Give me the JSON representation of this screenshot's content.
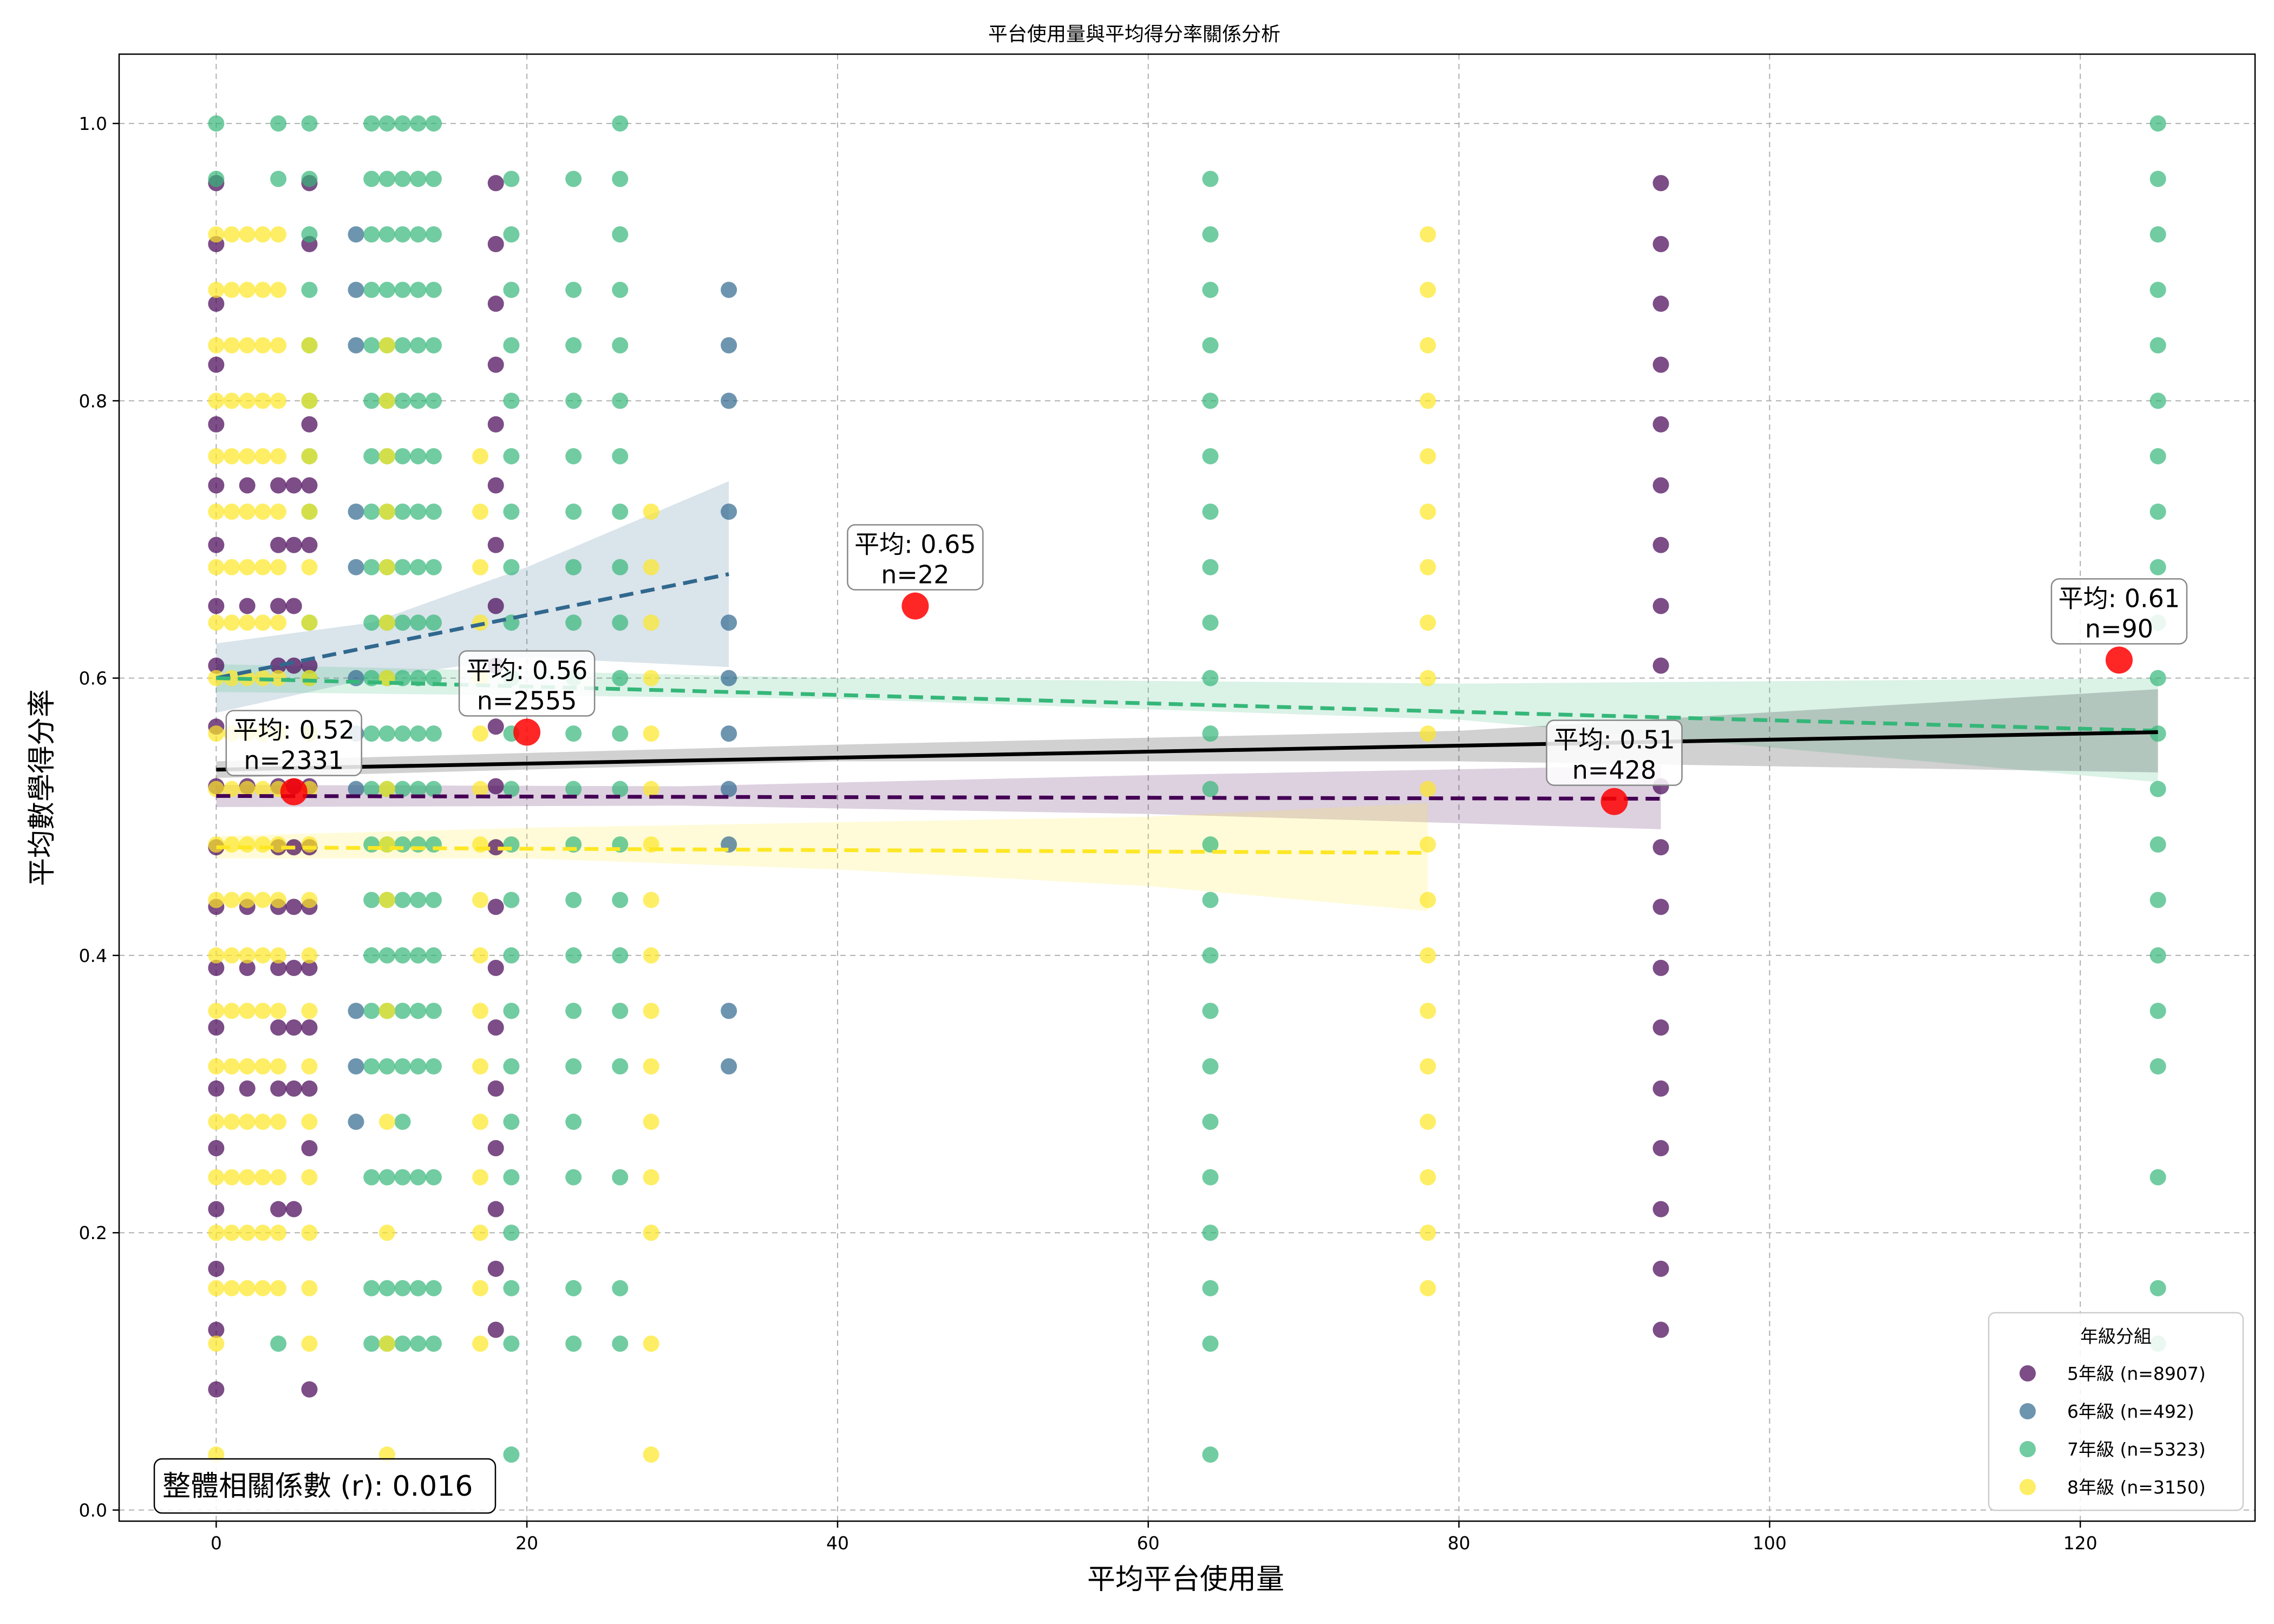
{
  "chart_data": {
    "type": "scatter",
    "title": "平台使用量與平均得分率關係分析",
    "xlabel": "平均平台使用量",
    "ylabel": "平均數學得分率",
    "xlim": [
      -6.25,
      131.25
    ],
    "ylim": [
      -0.008,
      1.05
    ],
    "xticks": [
      0,
      20,
      40,
      60,
      80,
      100,
      120
    ],
    "yticks": [
      0.0,
      0.2,
      0.4,
      0.6,
      0.8,
      1.0
    ],
    "xtick_labels": [
      "0",
      "20",
      "40",
      "60",
      "80",
      "100",
      "120"
    ],
    "ytick_labels": [
      "0.0",
      "0.2",
      "0.4",
      "0.6",
      "0.8",
      "1.0"
    ],
    "grid": true,
    "legend": {
      "title": "年級分組",
      "placement": "bottom-right",
      "entries": [
        "5年級 (n=8907)",
        "6年級 (n=492)",
        "7年級 (n=5323)",
        "8年級 (n=3150)"
      ]
    },
    "correlation_text": "整體相關係數 (r): 0.016",
    "series": [
      {
        "name": "5年級 (n=8907)",
        "color": "#440154",
        "score_levels": [
          0.087,
          0.13,
          0.174,
          0.217,
          0.261,
          0.304,
          0.348,
          0.391,
          0.435,
          0.478,
          0.522,
          0.565,
          0.609,
          0.652,
          0.696,
          0.739,
          0.783,
          0.826,
          0.87,
          0.913,
          0.957
        ],
        "columns": [
          {
            "x": 0,
            "ys": [
              0.087,
              0.13,
              0.174,
              0.217,
              0.261,
              0.304,
              0.348,
              0.391,
              0.435,
              0.478,
              0.522,
              0.565,
              0.609,
              0.652,
              0.696,
              0.739,
              0.783,
              0.826,
              0.87,
              0.913,
              0.957
            ]
          },
          {
            "x": 2,
            "ys": [
              0.304,
              0.391,
              0.435,
              0.522,
              0.652,
              0.739
            ]
          },
          {
            "x": 4,
            "ys": [
              0.217,
              0.304,
              0.348,
              0.391,
              0.435,
              0.478,
              0.522,
              0.609,
              0.652,
              0.696,
              0.739
            ]
          },
          {
            "x": 5,
            "ys": [
              0.217,
              0.304,
              0.348,
              0.391,
              0.435,
              0.478,
              0.522,
              0.609,
              0.652,
              0.696,
              0.739
            ]
          },
          {
            "x": 6,
            "ys": [
              0.087,
              0.261,
              0.304,
              0.348,
              0.391,
              0.435,
              0.478,
              0.522,
              0.609,
              0.696,
              0.739,
              0.783,
              0.913,
              0.957
            ]
          },
          {
            "x": 18,
            "ys": [
              0.13,
              0.174,
              0.217,
              0.261,
              0.304,
              0.348,
              0.391,
              0.435,
              0.478,
              0.522,
              0.565,
              0.609,
              0.652,
              0.696,
              0.739,
              0.783,
              0.826,
              0.87,
              0.913,
              0.957
            ]
          },
          {
            "x": 93,
            "ys": [
              0.13,
              0.174,
              0.217,
              0.261,
              0.304,
              0.348,
              0.391,
              0.435,
              0.478,
              0.522,
              0.609,
              0.652,
              0.696,
              0.739,
              0.783,
              0.826,
              0.87,
              0.913,
              0.957
            ]
          }
        ],
        "trend": {
          "x": [
            0,
            93
          ],
          "y": [
            0.515,
            0.513
          ]
        },
        "band": {
          "x": [
            0,
            30,
            60,
            93
          ],
          "lower": [
            0.507,
            0.508,
            0.502,
            0.491
          ],
          "upper": [
            0.523,
            0.522,
            0.53,
            0.537
          ]
        }
      },
      {
        "name": "6年級 (n=492)",
        "color": "#31688e",
        "columns": [
          {
            "x": 9,
            "ys": [
              0.28,
              0.32,
              0.36,
              0.52,
              0.56,
              0.6,
              0.68,
              0.72,
              0.84,
              0.88,
              0.92
            ]
          },
          {
            "x": 33,
            "ys": [
              0.32,
              0.36,
              0.48,
              0.52,
              0.56,
              0.6,
              0.64,
              0.72,
              0.8,
              0.84,
              0.88
            ]
          }
        ],
        "trend": {
          "x": [
            0,
            33
          ],
          "y": [
            0.6,
            0.675
          ]
        },
        "band": {
          "x": [
            0,
            10,
            20,
            33
          ],
          "lower": [
            0.575,
            0.6,
            0.615,
            0.608
          ],
          "upper": [
            0.625,
            0.64,
            0.68,
            0.742
          ]
        }
      },
      {
        "name": "7年級 (n=5323)",
        "color": "#35b779",
        "columns": [
          {
            "x": 0,
            "ys": [
              0.96,
              1.0
            ]
          },
          {
            "x": 4,
            "ys": [
              0.12,
              0.96,
              1.0
            ]
          },
          {
            "x": 6,
            "ys": [
              0.56,
              0.6,
              0.64,
              0.72,
              0.76,
              0.8,
              0.84,
              0.88,
              0.92,
              0.96,
              1.0
            ]
          },
          {
            "x": 10,
            "ys": [
              0.12,
              0.16,
              0.24,
              0.32,
              0.36,
              0.4,
              0.44,
              0.48,
              0.52,
              0.56,
              0.6,
              0.64,
              0.68,
              0.72,
              0.76,
              0.8,
              0.84,
              0.88,
              0.92,
              0.96,
              1.0
            ]
          },
          {
            "x": 11,
            "ys": [
              0.12,
              0.16,
              0.24,
              0.32,
              0.36,
              0.4,
              0.44,
              0.48,
              0.52,
              0.56,
              0.6,
              0.64,
              0.68,
              0.72,
              0.76,
              0.8,
              0.84,
              0.88,
              0.92,
              0.96,
              1.0
            ]
          },
          {
            "x": 12,
            "ys": [
              0.12,
              0.16,
              0.24,
              0.28,
              0.32,
              0.36,
              0.4,
              0.44,
              0.48,
              0.52,
              0.56,
              0.6,
              0.64,
              0.68,
              0.72,
              0.76,
              0.8,
              0.84,
              0.88,
              0.92,
              0.96,
              1.0
            ]
          },
          {
            "x": 13,
            "ys": [
              0.12,
              0.16,
              0.24,
              0.32,
              0.36,
              0.4,
              0.44,
              0.48,
              0.52,
              0.56,
              0.6,
              0.64,
              0.68,
              0.72,
              0.76,
              0.8,
              0.84,
              0.88,
              0.92,
              0.96,
              1.0
            ]
          },
          {
            "x": 14,
            "ys": [
              0.12,
              0.16,
              0.24,
              0.32,
              0.36,
              0.4,
              0.44,
              0.48,
              0.52,
              0.56,
              0.6,
              0.64,
              0.68,
              0.72,
              0.76,
              0.8,
              0.84,
              0.88,
              0.92,
              0.96,
              1.0
            ]
          },
          {
            "x": 19,
            "ys": [
              0.04,
              0.12,
              0.16,
              0.2,
              0.24,
              0.28,
              0.32,
              0.36,
              0.4,
              0.44,
              0.48,
              0.52,
              0.56,
              0.6,
              0.64,
              0.68,
              0.72,
              0.76,
              0.8,
              0.84,
              0.88,
              0.92,
              0.96
            ]
          },
          {
            "x": 23,
            "ys": [
              0.12,
              0.16,
              0.24,
              0.28,
              0.32,
              0.36,
              0.4,
              0.44,
              0.48,
              0.52,
              0.56,
              0.6,
              0.64,
              0.68,
              0.72,
              0.76,
              0.8,
              0.84,
              0.88,
              0.96
            ]
          },
          {
            "x": 26,
            "ys": [
              0.12,
              0.16,
              0.24,
              0.32,
              0.36,
              0.4,
              0.44,
              0.48,
              0.52,
              0.56,
              0.6,
              0.64,
              0.68,
              0.72,
              0.76,
              0.8,
              0.84,
              0.88,
              0.92,
              0.96,
              1.0
            ]
          },
          {
            "x": 64,
            "ys": [
              0.04,
              0.12,
              0.16,
              0.2,
              0.24,
              0.28,
              0.32,
              0.36,
              0.4,
              0.44,
              0.48,
              0.52,
              0.56,
              0.6,
              0.64,
              0.68,
              0.72,
              0.76,
              0.8,
              0.84,
              0.88,
              0.92,
              0.96
            ]
          },
          {
            "x": 125,
            "ys": [
              0.12,
              0.16,
              0.24,
              0.32,
              0.36,
              0.4,
              0.44,
              0.48,
              0.52,
              0.56,
              0.6,
              0.64,
              0.68,
              0.72,
              0.76,
              0.8,
              0.84,
              0.88,
              0.92,
              0.96,
              1.0
            ]
          }
        ],
        "trend": {
          "x": [
            0,
            125
          ],
          "y": [
            0.6,
            0.562
          ]
        },
        "band": {
          "x": [
            0,
            40,
            80,
            125
          ],
          "lower": [
            0.59,
            0.585,
            0.57,
            0.525
          ],
          "upper": [
            0.61,
            0.6,
            0.596,
            0.6
          ]
        }
      },
      {
        "name": "8年級 (n=3150)",
        "color": "#fde725",
        "columns": [
          {
            "x": 0,
            "ys": [
              0.04,
              0.12,
              0.16,
              0.2,
              0.24,
              0.28,
              0.32,
              0.36,
              0.4,
              0.44,
              0.48,
              0.52,
              0.56,
              0.6,
              0.64,
              0.68,
              0.72,
              0.76,
              0.8,
              0.84,
              0.88,
              0.92
            ]
          },
          {
            "x": 1,
            "ys": [
              0.16,
              0.2,
              0.24,
              0.28,
              0.32,
              0.36,
              0.4,
              0.44,
              0.48,
              0.52,
              0.56,
              0.6,
              0.64,
              0.68,
              0.72,
              0.76,
              0.8,
              0.84,
              0.88,
              0.92
            ]
          },
          {
            "x": 2,
            "ys": [
              0.16,
              0.2,
              0.24,
              0.28,
              0.32,
              0.36,
              0.4,
              0.44,
              0.48,
              0.52,
              0.56,
              0.6,
              0.64,
              0.68,
              0.72,
              0.76,
              0.8,
              0.84,
              0.88,
              0.92
            ]
          },
          {
            "x": 3,
            "ys": [
              0.16,
              0.2,
              0.24,
              0.28,
              0.32,
              0.36,
              0.4,
              0.44,
              0.48,
              0.52,
              0.56,
              0.6,
              0.64,
              0.68,
              0.72,
              0.76,
              0.8,
              0.84,
              0.88,
              0.92
            ]
          },
          {
            "x": 4,
            "ys": [
              0.16,
              0.2,
              0.24,
              0.28,
              0.32,
              0.36,
              0.4,
              0.44,
              0.48,
              0.52,
              0.56,
              0.6,
              0.64,
              0.68,
              0.72,
              0.76,
              0.8,
              0.84,
              0.88,
              0.92
            ]
          },
          {
            "x": 6,
            "ys": [
              0.12,
              0.16,
              0.2,
              0.24,
              0.28,
              0.32,
              0.36,
              0.4,
              0.44,
              0.48,
              0.52,
              0.56,
              0.6,
              0.64,
              0.68,
              0.72,
              0.76,
              0.8,
              0.84
            ]
          },
          {
            "x": 11,
            "ys": [
              0.04,
              0.12,
              0.2,
              0.28,
              0.36,
              0.44,
              0.48,
              0.52,
              0.6,
              0.64,
              0.68,
              0.72,
              0.76,
              0.8,
              0.84
            ]
          },
          {
            "x": 17,
            "ys": [
              0.12,
              0.16,
              0.2,
              0.24,
              0.28,
              0.32,
              0.36,
              0.4,
              0.44,
              0.48,
              0.52,
              0.56,
              0.6,
              0.64,
              0.68,
              0.72,
              0.76
            ]
          },
          {
            "x": 28,
            "ys": [
              0.04,
              0.12,
              0.2,
              0.24,
              0.28,
              0.32,
              0.36,
              0.4,
              0.44,
              0.48,
              0.52,
              0.56,
              0.6,
              0.64,
              0.68,
              0.72
            ]
          },
          {
            "x": 78,
            "ys": [
              0.16,
              0.2,
              0.24,
              0.28,
              0.32,
              0.36,
              0.4,
              0.44,
              0.48,
              0.52,
              0.56,
              0.6,
              0.64,
              0.68,
              0.72,
              0.76,
              0.8,
              0.84,
              0.88,
              0.92
            ]
          }
        ],
        "trend": {
          "x": [
            0,
            78
          ],
          "y": [
            0.478,
            0.474
          ]
        },
        "band": {
          "x": [
            0,
            20,
            40,
            60,
            78
          ],
          "lower": [
            0.47,
            0.47,
            0.462,
            0.45,
            0.432
          ],
          "upper": [
            0.486,
            0.492,
            0.496,
            0.5,
            0.51
          ]
        }
      }
    ],
    "overall_trend": {
      "x": [
        0,
        125
      ],
      "y": [
        0.534,
        0.561
      ],
      "color": "#000000",
      "band": {
        "x": [
          0,
          40,
          80,
          125
        ],
        "lower": [
          0.528,
          0.54,
          0.54,
          0.532
        ],
        "upper": [
          0.54,
          0.552,
          0.562,
          0.592
        ]
      }
    },
    "group_means": [
      {
        "x": 5,
        "y": 0.518,
        "label_line1": "平均: 0.52",
        "label_line2": "n=2331"
      },
      {
        "x": 20,
        "y": 0.561,
        "label_line1": "平均: 0.56",
        "label_line2": "n=2555"
      },
      {
        "x": 45,
        "y": 0.652,
        "label_line1": "平均: 0.65",
        "label_line2": "n=22"
      },
      {
        "x": 90,
        "y": 0.511,
        "label_line1": "平均: 0.51",
        "label_line2": "n=428"
      },
      {
        "x": 122.5,
        "y": 0.613,
        "label_line1": "平均: 0.61",
        "label_line2": "n=90"
      }
    ],
    "mean_marker_color": "#ff0000"
  }
}
